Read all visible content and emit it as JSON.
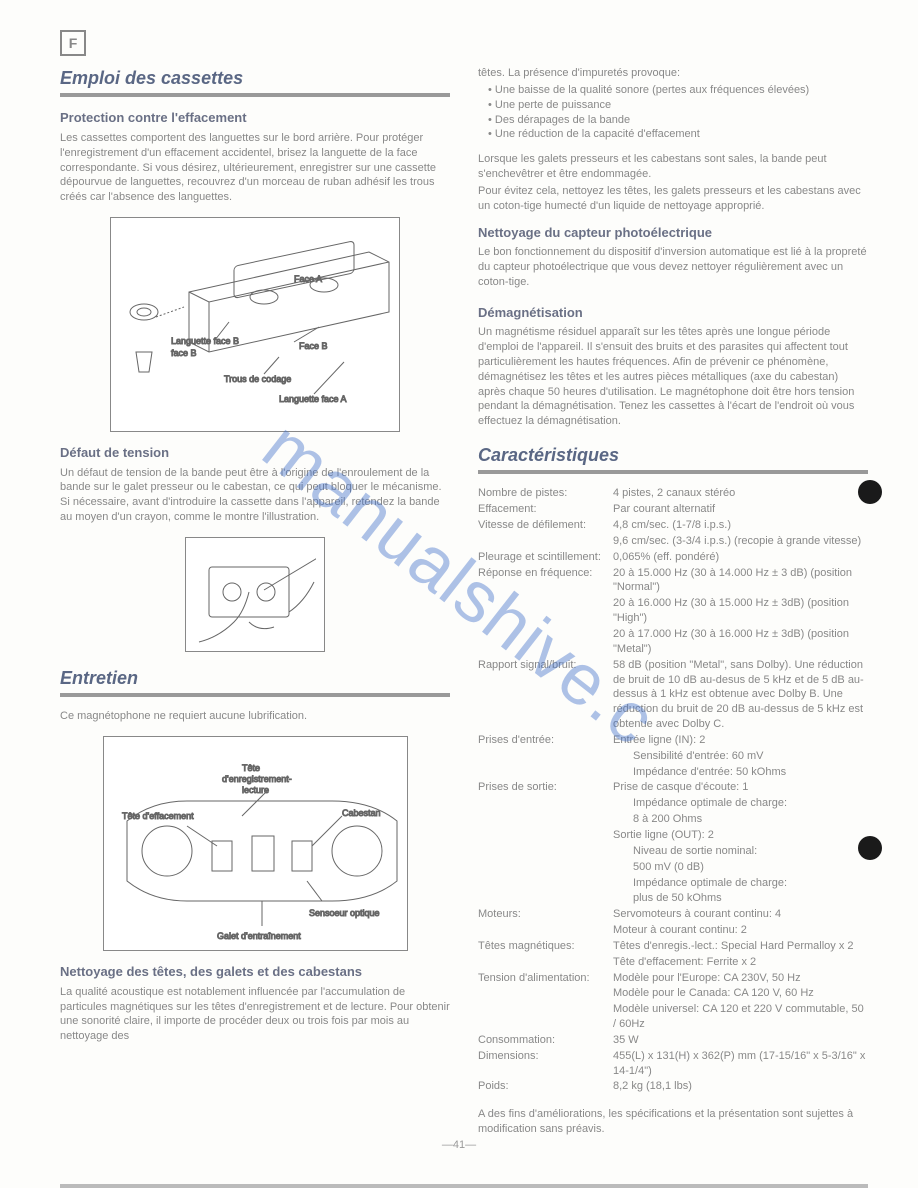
{
  "lang_code": "F",
  "watermark": "manualshive.c",
  "page_number": "—41—",
  "col1": {
    "section1": {
      "heading": "Emploi des cassettes",
      "sub1_title": "Protection contre l'effacement",
      "sub1_text": "Les cassettes comportent des languettes sur le bord arrière. Pour protéger l'enregistrement d'un effacement accidentel, brisez la languette de la face correspondante. Si vous désirez, ultérieurement, enregistrer sur une cassette dépourvue de languettes, recouvrez d'un morceau de ruban adhésif les trous créés car l'absence des languettes.",
      "fig1": {
        "label_faceA": "Face A",
        "label_lang_faceB": "Languette face B",
        "label_faceB": "Face B",
        "label_trous": "Trous de codage",
        "label_lang_faceA": "Languette face A"
      },
      "sub2_title": "Défaut de tension",
      "sub2_text": "Un défaut de tension de la bande peut être à l'origine de l'enroulement de la bande sur le galet presseur ou le cabestan, ce qui peut bloquer le mécanisme. Si nécessaire, avant d'introduire la cassette dans l'appareil, retendez la bande au moyen d'un crayon, comme le montre l'illustration."
    },
    "section2": {
      "heading": "Entretien",
      "text1": "Ce magnétophone ne requiert aucune lubrification.",
      "fig3": {
        "label_tete_eff": "Tête d'effacement",
        "label_tete_enr": "Tête d'enregistrement-lecture",
        "label_cabestan": "Cabestan",
        "label_sensoeur": "Sensoeur optique",
        "label_galet": "Galet d'entraînement"
      },
      "sub1_title": "Nettoyage des têtes, des galets et des cabestans",
      "sub1_text": "La qualité acoustique est notablement influencée par l'accumulation de particules magnétiques sur les têtes d'enregistrement et de lecture. Pour obtenir une sonorité claire, il importe de procéder deux ou trois fois par mois au nettoyage des"
    }
  },
  "col2": {
    "intro_text": "têtes. La présence d'impuretés provoque:",
    "intro_list": [
      "Une baisse de la qualité sonore (pertes aux fréquences élevées)",
      "Une perte de puissance",
      "Des dérapages de la bande",
      "Une réduction de la capacité d'effacement"
    ],
    "intro_after1": "Lorsque les galets presseurs et les cabestans sont sales, la bande peut s'enchevêtrer et être endommagée.",
    "intro_after2": "Pour évitez cela, nettoyez les têtes, les galets presseurs et les cabestans avec un coton-tige humecté d'un liquide de nettoyage approprié.",
    "sub1_title": "Nettoyage du capteur photoélectrique",
    "sub1_text": "Le bon fonctionnement du dispositif d'inversion automatique est lié à la propreté du capteur photoélectrique que vous devez nettoyer régulièrement avec un coton-tige.",
    "sub2_title": "Démagnétisation",
    "sub2_text": "Un magnétisme résiduel apparaît sur les têtes après une longue période d'emploi de l'appareil. Il s'ensuit des bruits et des parasites qui affectent tout particulièrement les hautes fréquences. Afin de prévenir ce phénomène, démagnétisez les têtes et les autres pièces métalliques (axe du cabestan) après chaque 50 heures d'utilisation. Le magnétophone doit être hors tension pendant la démagnétisation. Tenez les cassettes à l'écart de l'endroit où vous effectuez la démagnétisation.",
    "specs_heading": "Caractéristiques",
    "specs": [
      {
        "label": "Nombre de pistes:",
        "value": "4 pistes, 2 canaux stéréo"
      },
      {
        "label": "Effacement:",
        "value": "Par courant alternatif"
      },
      {
        "label": "Vitesse de défilement:",
        "value": "4,8 cm/sec. (1-7/8 i.p.s.)"
      },
      {
        "label": "",
        "value": "9,6 cm/sec. (3-3/4 i.p.s.) (recopie à grande vitesse)"
      },
      {
        "label": "Pleurage et scintillement:",
        "value": "0,065% (eff. pondéré)"
      },
      {
        "label": "Réponse en fréquence:",
        "value": "20 à 15.000 Hz (30 à 14.000 Hz ± 3 dB) (position \"Normal\")"
      },
      {
        "label": "",
        "value": "20 à 16.000 Hz (30 à 15.000 Hz ± 3dB) (position \"High\")"
      },
      {
        "label": "",
        "value": "20 à 17.000 Hz (30 à 16.000 Hz ± 3dB) (position \"Metal\")"
      },
      {
        "label": "Rapport signal/bruit:",
        "value": "58 dB (position \"Metal\", sans Dolby). Une réduction de bruit de 10 dB au-desus de 5 kHz et de 5 dB au-dessus à 1 kHz est obtenue avec Dolby B. Une réduction du bruit de 20 dB au-dessus de 5 kHz est obtenue avec Dolby C."
      },
      {
        "label": "Prises d'entrée:",
        "value": "Entrée ligne (IN): 2"
      },
      {
        "label": "",
        "value": "Sensibilité d'entrée: 60 mV",
        "sub": true
      },
      {
        "label": "",
        "value": "Impédance d'entrée: 50 kOhms",
        "sub": true
      },
      {
        "label": "Prises de sortie:",
        "value": "Prise de casque d'écoute: 1"
      },
      {
        "label": "",
        "value": "Impédance optimale de charge:",
        "sub": true
      },
      {
        "label": "",
        "value": "8 à 200 Ohms",
        "sub": true
      },
      {
        "label": "",
        "value": "Sortie ligne (OUT): 2"
      },
      {
        "label": "",
        "value": "Niveau de sortie nominal:",
        "sub": true
      },
      {
        "label": "",
        "value": "500 mV (0 dB)",
        "sub": true
      },
      {
        "label": "",
        "value": "Impédance optimale de charge:",
        "sub": true
      },
      {
        "label": "",
        "value": "plus de 50 kOhms",
        "sub": true
      },
      {
        "label": "Moteurs:",
        "value": "Servomoteurs à courant continu: 4"
      },
      {
        "label": "",
        "value": "Moteur à courant continu: 2"
      },
      {
        "label": "Têtes magnétiques:",
        "value": "Têtes d'enregis.-lect.: Special Hard Permalloy x 2"
      },
      {
        "label": "",
        "value": "Tête d'effacement: Ferrite x 2"
      },
      {
        "label": "Tension d'alimentation:",
        "value": "Modèle pour l'Europe: CA 230V, 50 Hz"
      },
      {
        "label": "",
        "value": "Modèle pour le Canada: CA 120 V, 60 Hz"
      },
      {
        "label": "",
        "value": "Modèle universel: CA 120 et 220 V commutable, 50 / 60Hz"
      },
      {
        "label": "Consommation:",
        "value": "35 W"
      },
      {
        "label": "Dimensions:",
        "value": "455(L) x 131(H) x 362(P) mm (17-15/16\" x 5-3/16\" x 14-1/4\")"
      },
      {
        "label": "Poids:",
        "value": "8,2 kg (18,1 lbs)"
      }
    ],
    "disclaimer": "A des fins d'améliorations, les spécifications et la présentation sont sujettes à modification sans préavis."
  }
}
